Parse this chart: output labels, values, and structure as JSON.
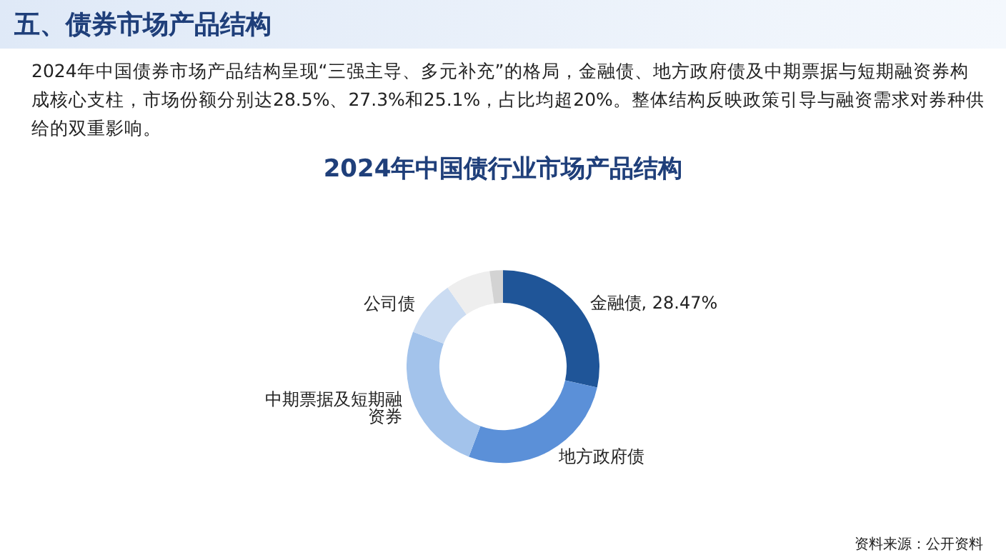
{
  "chart_data": {
    "type": "donut",
    "title": "2024年中国债行业市场产品结构",
    "categories": [
      "金融债",
      "地方政府债",
      "中期票据及短期融资券",
      "公司债",
      null,
      null
    ],
    "values": [
      28.47,
      27.3,
      25.1,
      9.4,
      7.5,
      2.23
    ],
    "value_labels": [
      "28.47%",
      null,
      null,
      null,
      null,
      null
    ],
    "colors": [
      "#1f5598",
      "#5b90d8",
      "#a3c3eb",
      "#cbdcf2",
      "#eeeeee",
      "#d3d3d3"
    ],
    "legend": false,
    "annotations": [
      "五、债券市场产品结构",
      "2024年中国债券市场产品结构呈现“三强主导、多元补充”的格局，金融债、地方政府债及中期票据与短期融资券构成核心支柱，市场份额分别达28.5%、27.3%和25.1%，占比均超20%。整体结构反映政策引导与融资需求对券种供给的双重影响。",
      "资料来源：公开资料"
    ]
  }
}
